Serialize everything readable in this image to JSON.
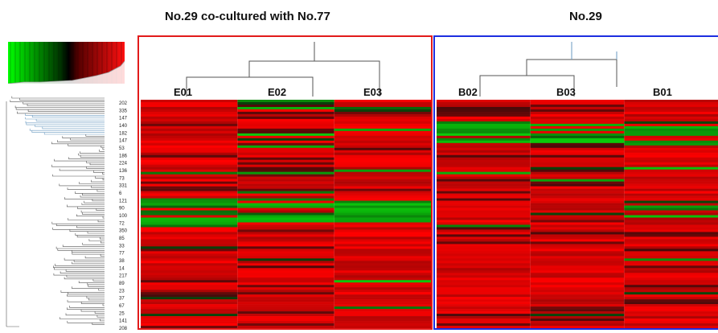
{
  "titles": {
    "left": "No.29 co-cultured with No.77",
    "right": "No.29"
  },
  "chart_data": {
    "type": "heatmap",
    "groups": [
      {
        "name": "No.29 co-cultured with No.77",
        "columns": [
          "E01",
          "E02",
          "E03"
        ],
        "border_color": "#e21b1b"
      },
      {
        "name": "No.29",
        "columns": [
          "B02",
          "B03",
          "B01"
        ],
        "border_color": "#1e2ee0"
      }
    ],
    "row_labels": [
      "202",
      "335",
      "147",
      "140",
      "182",
      "147",
      "53",
      "186",
      "224",
      "136",
      "73",
      "331",
      "6",
      "121",
      "90",
      "100",
      "72",
      "350",
      "85",
      "33",
      "77",
      "38",
      "14",
      "217",
      "89",
      "23",
      "37",
      "67",
      "25",
      "141",
      "208"
    ],
    "color_scale": {
      "low": "#00e000",
      "mid": "#000000",
      "high": "#ff0000"
    }
  }
}
